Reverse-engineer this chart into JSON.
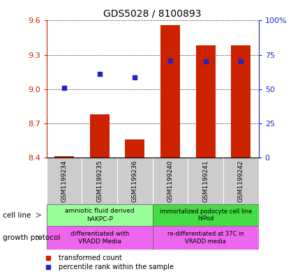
{
  "title": "GDS5028 / 8100893",
  "samples": [
    "GSM1199234",
    "GSM1199235",
    "GSM1199236",
    "GSM1199240",
    "GSM1199241",
    "GSM1199242"
  ],
  "transformed_count": [
    8.41,
    8.78,
    8.56,
    9.56,
    9.38,
    9.38
  ],
  "percentile_rank": [
    9.01,
    9.13,
    9.1,
    9.25,
    9.24,
    9.24
  ],
  "ylim_left": [
    8.4,
    9.6
  ],
  "ylim_right": [
    0,
    100
  ],
  "yticks_left": [
    8.4,
    8.7,
    9.0,
    9.3,
    9.6
  ],
  "yticks_right": [
    0,
    25,
    50,
    75,
    100
  ],
  "ytick_labels_right": [
    "0",
    "25",
    "50",
    "75",
    "100%"
  ],
  "bar_color": "#cc2200",
  "dot_color": "#2222cc",
  "grid_color": "#000000",
  "cell_line_label1": "amniotic fluid derived\nhAKPC-P",
  "cell_line_label2": "immortalized podocyte cell line\nhIPod",
  "cell_line_color1": "#99ff99",
  "cell_line_color2": "#44dd44",
  "growth_protocol_label1": "differentiated with\nVRADD Media",
  "growth_protocol_label2": "re-differentiated at 37C in\nVRADD media",
  "growth_protocol_color": "#ee66ee",
  "legend_items": [
    "transformed count",
    "percentile rank within the sample"
  ],
  "bar_width": 0.55,
  "left_axis_color": "#cc2200",
  "right_axis_color": "#2222cc",
  "sample_box_color": "#cccccc",
  "left_label_color": "#888888"
}
